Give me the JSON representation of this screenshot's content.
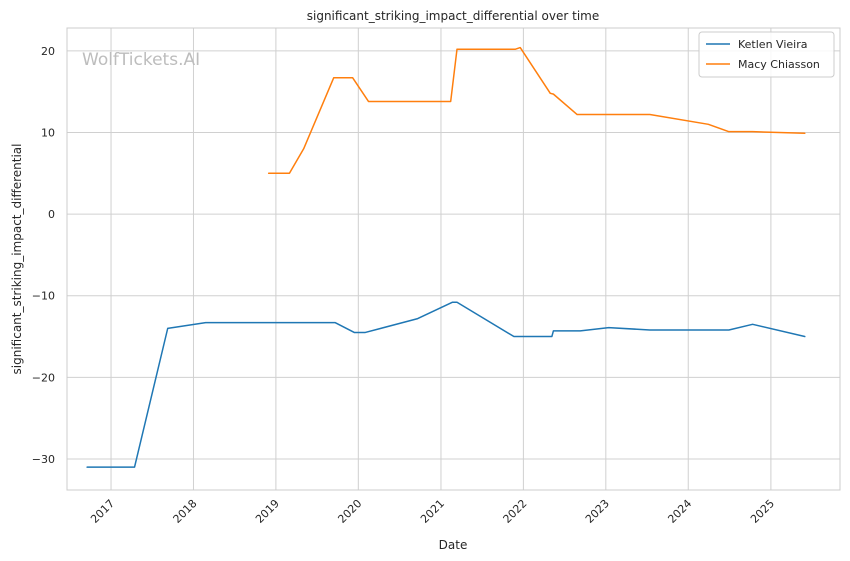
{
  "chart_data": {
    "type": "line",
    "title": "significant_striking_impact_differential over time",
    "xlabel": "Date",
    "ylabel": "significant_striking_impact_differential",
    "watermark": "WolfTickets.AI",
    "x_ticks": [
      "2017",
      "2018",
      "2019",
      "2020",
      "2021",
      "2022",
      "2023",
      "2024",
      "2025"
    ],
    "y_ticks": [
      20,
      10,
      0,
      -10,
      -20,
      -30
    ],
    "y_tick_labels": [
      "20",
      "10",
      "0",
      "−10",
      "−20",
      "−30"
    ],
    "xlim": [
      "2016-06-20",
      "2025-11-03"
    ],
    "ylim": [
      -33.8,
      22.8
    ],
    "grid": true,
    "legend_position": "top-right",
    "series": [
      {
        "name": "Ketlen Vieira",
        "color": "#1f77b4",
        "points": [
          {
            "x": "2016-09-17",
            "y": -31.0
          },
          {
            "x": "2017-04-15",
            "y": -31.0
          },
          {
            "x": "2017-09-09",
            "y": -14.0
          },
          {
            "x": "2018-02-24",
            "y": -13.3
          },
          {
            "x": "2018-12-15",
            "y": -13.3
          },
          {
            "x": "2019-09-21",
            "y": -13.3
          },
          {
            "x": "2019-12-14",
            "y": -14.5
          },
          {
            "x": "2020-02-01",
            "y": -14.5
          },
          {
            "x": "2020-09-20",
            "y": -12.8
          },
          {
            "x": "2021-02-20",
            "y": -10.8
          },
          {
            "x": "2021-03-13",
            "y": -10.8
          },
          {
            "x": "2021-11-20",
            "y": -15.0
          },
          {
            "x": "2022-05-07",
            "y": -15.0
          },
          {
            "x": "2022-05-14",
            "y": -14.3
          },
          {
            "x": "2022-09-10",
            "y": -14.3
          },
          {
            "x": "2023-01-14",
            "y": -13.9
          },
          {
            "x": "2023-07-15",
            "y": -14.2
          },
          {
            "x": "2024-06-29",
            "y": -14.2
          },
          {
            "x": "2024-10-12",
            "y": -13.5
          },
          {
            "x": "2025-05-31",
            "y": -15.0
          }
        ]
      },
      {
        "name": "Macy Chiasson",
        "color": "#ff7f0e",
        "points": [
          {
            "x": "2018-11-30",
            "y": 5.0
          },
          {
            "x": "2019-03-02",
            "y": 5.0
          },
          {
            "x": "2019-05-04",
            "y": 8.0
          },
          {
            "x": "2019-09-14",
            "y": 16.7
          },
          {
            "x": "2019-12-07",
            "y": 16.7
          },
          {
            "x": "2020-02-15",
            "y": 13.8
          },
          {
            "x": "2021-02-13",
            "y": 13.8
          },
          {
            "x": "2021-03-13",
            "y": 20.2
          },
          {
            "x": "2021-11-27",
            "y": 20.2
          },
          {
            "x": "2021-12-18",
            "y": 20.4
          },
          {
            "x": "2022-04-30",
            "y": 14.8
          },
          {
            "x": "2022-05-14",
            "y": 14.7
          },
          {
            "x": "2022-08-27",
            "y": 12.2
          },
          {
            "x": "2023-07-15",
            "y": 12.2
          },
          {
            "x": "2024-03-30",
            "y": 11.0
          },
          {
            "x": "2024-06-29",
            "y": 10.1
          },
          {
            "x": "2024-10-12",
            "y": 10.1
          },
          {
            "x": "2025-05-31",
            "y": 9.9
          }
        ]
      }
    ]
  }
}
